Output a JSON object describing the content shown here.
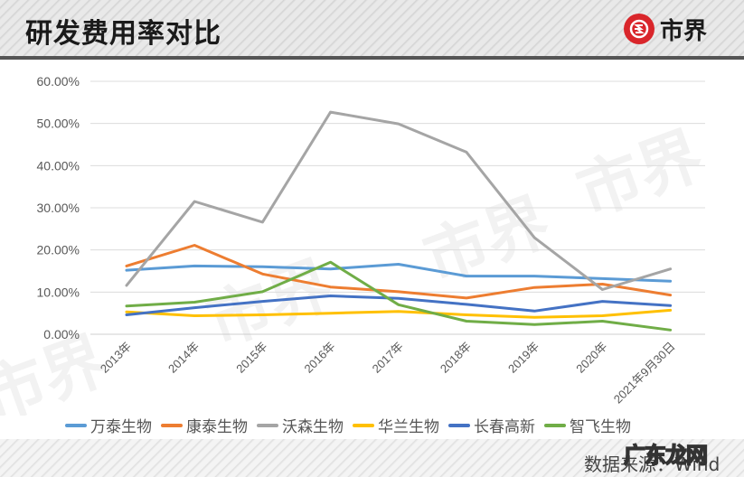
{
  "header": {
    "title": "研发费用率对比",
    "logo_text": "市界",
    "logo_icon": "shijie-logo-icon"
  },
  "footer": {
    "source": "数据来源：Wind",
    "site_watermark": "广东龙网"
  },
  "watermark": "市界",
  "colors": {
    "万泰生物": "#5b9bd5",
    "康泰生物": "#ed7d31",
    "沃森生物": "#a5a5a5",
    "华兰生物": "#ffc000",
    "长春高新": "#4472c4",
    "智飞生物": "#70ad47"
  },
  "chart_data": {
    "type": "line",
    "title": "研发费用率对比",
    "xlabel": "",
    "ylabel": "",
    "ylim": [
      0,
      60
    ],
    "yticks": [
      "0.00%",
      "10.00%",
      "20.00%",
      "30.00%",
      "40.00%",
      "50.00%",
      "60.00%"
    ],
    "grid": true,
    "legend_position": "bottom",
    "categories": [
      "2013年",
      "2014年",
      "2015年",
      "2016年",
      "2017年",
      "2018年",
      "2019年",
      "2020年",
      "2021年9月30日"
    ],
    "series": [
      {
        "name": "万泰生物",
        "color": "#5b9bd5",
        "values": [
          15.2,
          16.2,
          16.0,
          15.5,
          16.6,
          13.8,
          13.8,
          13.2,
          12.6
        ]
      },
      {
        "name": "康泰生物",
        "color": "#ed7d31",
        "values": [
          16.2,
          21.1,
          14.3,
          11.2,
          10.1,
          8.6,
          11.1,
          11.9,
          9.3
        ]
      },
      {
        "name": "沃森生物",
        "color": "#a5a5a5",
        "values": [
          11.6,
          31.5,
          26.6,
          52.7,
          49.9,
          43.2,
          22.9,
          10.6,
          15.5
        ]
      },
      {
        "name": "华兰生物",
        "color": "#ffc000",
        "values": [
          5.3,
          4.4,
          4.6,
          5.0,
          5.4,
          4.6,
          4.0,
          4.4,
          5.7
        ]
      },
      {
        "name": "长春高新",
        "color": "#4472c4",
        "values": [
          4.6,
          6.3,
          7.8,
          9.1,
          8.5,
          7.1,
          5.5,
          7.8,
          6.8
        ]
      },
      {
        "name": "智飞生物",
        "color": "#70ad47",
        "values": [
          6.7,
          7.6,
          10.1,
          17.1,
          7.0,
          3.1,
          2.3,
          3.1,
          1.0
        ]
      }
    ]
  }
}
